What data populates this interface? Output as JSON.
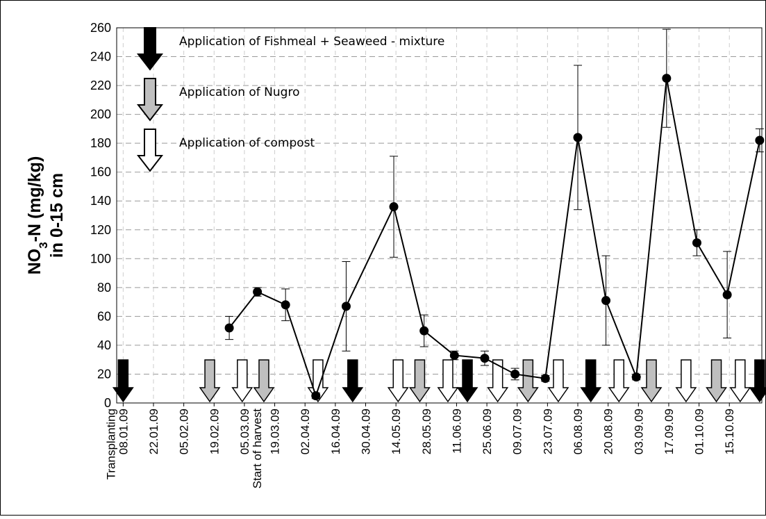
{
  "chart_data": {
    "type": "line",
    "ylabel": {
      "parts": [
        "NO",
        "3",
        "-N (mg/kg)"
      ],
      "line2": "in 0-15 cm"
    },
    "color": "#000000",
    "x": [
      "2009-02-26",
      "2009-03-11",
      "2009-03-24",
      "2009-04-07",
      "2009-04-21",
      "2009-05-13",
      "2009-05-27",
      "2009-06-10",
      "2009-06-24",
      "2009-07-08",
      "2009-07-22",
      "2009-08-06",
      "2009-08-19",
      "2009-09-02",
      "2009-09-16",
      "2009-09-30",
      "2009-10-14",
      "2009-10-29"
    ],
    "values": [
      52,
      77,
      68,
      5,
      67,
      136,
      50,
      33,
      31,
      20,
      17,
      184,
      71,
      18,
      225,
      111,
      75,
      182
    ],
    "errors": [
      8,
      3,
      11,
      2,
      31,
      35,
      11,
      3,
      5,
      4,
      2,
      50,
      31,
      2,
      34,
      9,
      30,
      8
    ],
    "xlim": [
      "2009-01-05",
      "2009-10-30"
    ],
    "xticks": [
      {
        "value": "2009-01-08",
        "label": "08.01.09"
      },
      {
        "value": "2009-01-22",
        "label": "22.01.09"
      },
      {
        "value": "2009-02-05",
        "label": "05.02.09"
      },
      {
        "value": "2009-02-19",
        "label": "19.02.09"
      },
      {
        "value": "2009-03-05",
        "label": "05.03.09"
      },
      {
        "value": "2009-03-19",
        "label": "19.03.09"
      },
      {
        "value": "2009-04-02",
        "label": "02.04.09"
      },
      {
        "value": "2009-04-16",
        "label": "16.04.09"
      },
      {
        "value": "2009-04-30",
        "label": "30.04.09"
      },
      {
        "value": "2009-05-14",
        "label": "14.05.09"
      },
      {
        "value": "2009-05-28",
        "label": "28.05.09"
      },
      {
        "value": "2009-06-11",
        "label": "11.06.09"
      },
      {
        "value": "2009-06-25",
        "label": "25.06.09"
      },
      {
        "value": "2009-07-09",
        "label": "09.07.09"
      },
      {
        "value": "2009-07-23",
        "label": "23.07.09"
      },
      {
        "value": "2009-08-06",
        "label": "06.08.09"
      },
      {
        "value": "2009-08-20",
        "label": "20.08.09"
      },
      {
        "value": "2009-09-03",
        "label": "03.09.09"
      },
      {
        "value": "2009-09-17",
        "label": "17.09.09"
      },
      {
        "value": "2009-10-01",
        "label": "01.10.09"
      },
      {
        "value": "2009-10-15",
        "label": "15.10.09"
      }
    ],
    "ylim": [
      0,
      260
    ],
    "yticks": [
      0,
      20,
      40,
      60,
      80,
      100,
      120,
      140,
      160,
      180,
      200,
      220,
      240,
      260
    ],
    "grid": true,
    "annotations": [
      {
        "text": "Transplanting",
        "x": "2009-01-08"
      },
      {
        "text": "Start of harvest",
        "x": "2009-03-05"
      }
    ],
    "applications": [
      {
        "name": "Application of Fishmeal + Seaweed - mixture",
        "color": "#000000",
        "x": [
          "2009-01-08",
          "2009-04-24",
          "2009-06-16",
          "2009-08-12",
          "2009-10-29"
        ]
      },
      {
        "name": "Application of Nugro",
        "color": "#bfbfbf",
        "x": [
          "2009-02-17",
          "2009-03-14",
          "2009-05-25",
          "2009-07-14",
          "2009-09-09",
          "2009-10-09"
        ]
      },
      {
        "name": "Application of compost",
        "color": "#ffffff",
        "x": [
          "2009-03-04",
          "2009-04-08",
          "2009-05-15",
          "2009-06-07",
          "2009-06-30",
          "2009-07-28",
          "2009-08-25",
          "2009-09-25",
          "2009-10-20"
        ]
      }
    ]
  }
}
